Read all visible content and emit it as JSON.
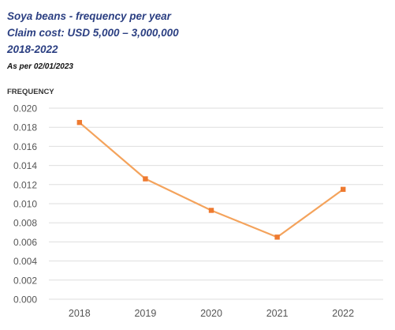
{
  "header": {
    "title": "Soya beans - frequency per year",
    "subtitle": "Claim cost: USD 5,000 – 3,000,000",
    "period": "2018-2022",
    "as_per": "As per 02/01/2023"
  },
  "colors": {
    "title": "#2b3f82",
    "series": "#f4a35c",
    "marker": "#ee7a30",
    "grid": "#dedede",
    "tick_text": "#555555"
  },
  "chart_data": {
    "type": "line",
    "title": "Soya beans - frequency per year",
    "xlabel": "",
    "ylabel": "FREQUENCY",
    "categories": [
      "2018",
      "2019",
      "2020",
      "2021",
      "2022"
    ],
    "series": [
      {
        "values": [
          0.0185,
          0.0126,
          0.0093,
          0.0065,
          0.0115
        ]
      }
    ],
    "yticks": [
      "0.000",
      "0.002",
      "0.004",
      "0.006",
      "0.008",
      "0.010",
      "0.012",
      "0.014",
      "0.016",
      "0.018",
      "0.020"
    ],
    "ylim": [
      0,
      0.02
    ],
    "grid": true,
    "legend": "none"
  }
}
